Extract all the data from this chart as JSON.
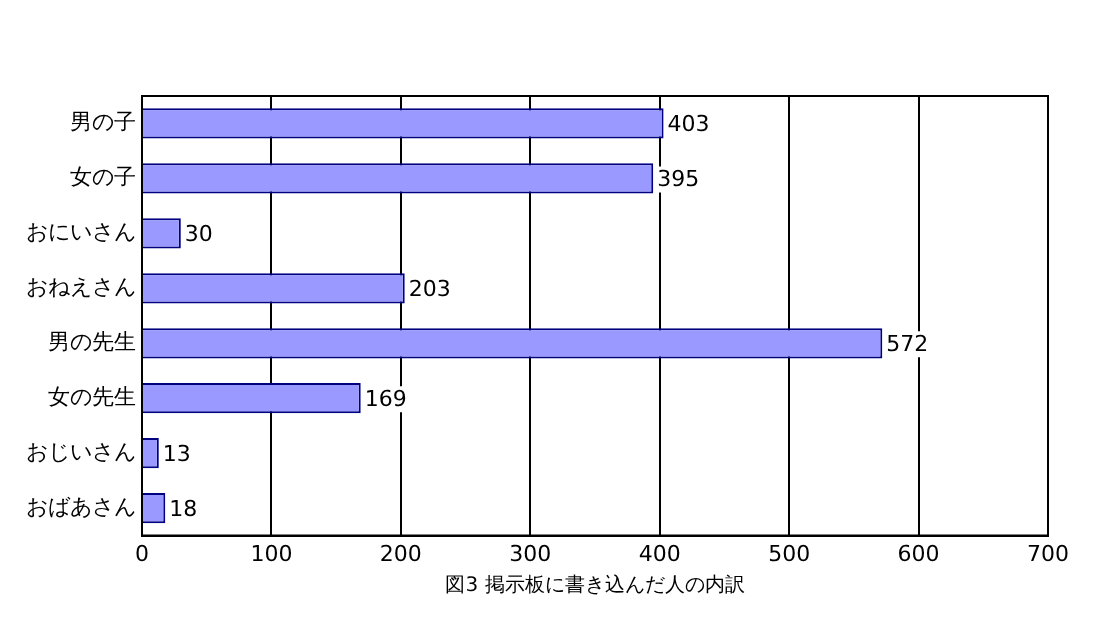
{
  "chart_data": {
    "type": "bar",
    "orientation": "horizontal",
    "xlabel": "図3 掲示板に書き込んだ人の内訳",
    "categories": [
      "男の子",
      "女の子",
      "おにいさん",
      "おねえさん",
      "男の先生",
      "女の先生",
      "おじいさん",
      "おばあさん"
    ],
    "values": [
      403,
      395,
      30,
      203,
      572,
      169,
      13,
      18
    ],
    "color": "#9999ff",
    "xlim": [
      0,
      700
    ],
    "xticks": [
      0,
      100,
      200,
      300,
      400,
      500,
      600,
      700
    ],
    "grid": "x",
    "data_labels": true,
    "legend": false
  }
}
